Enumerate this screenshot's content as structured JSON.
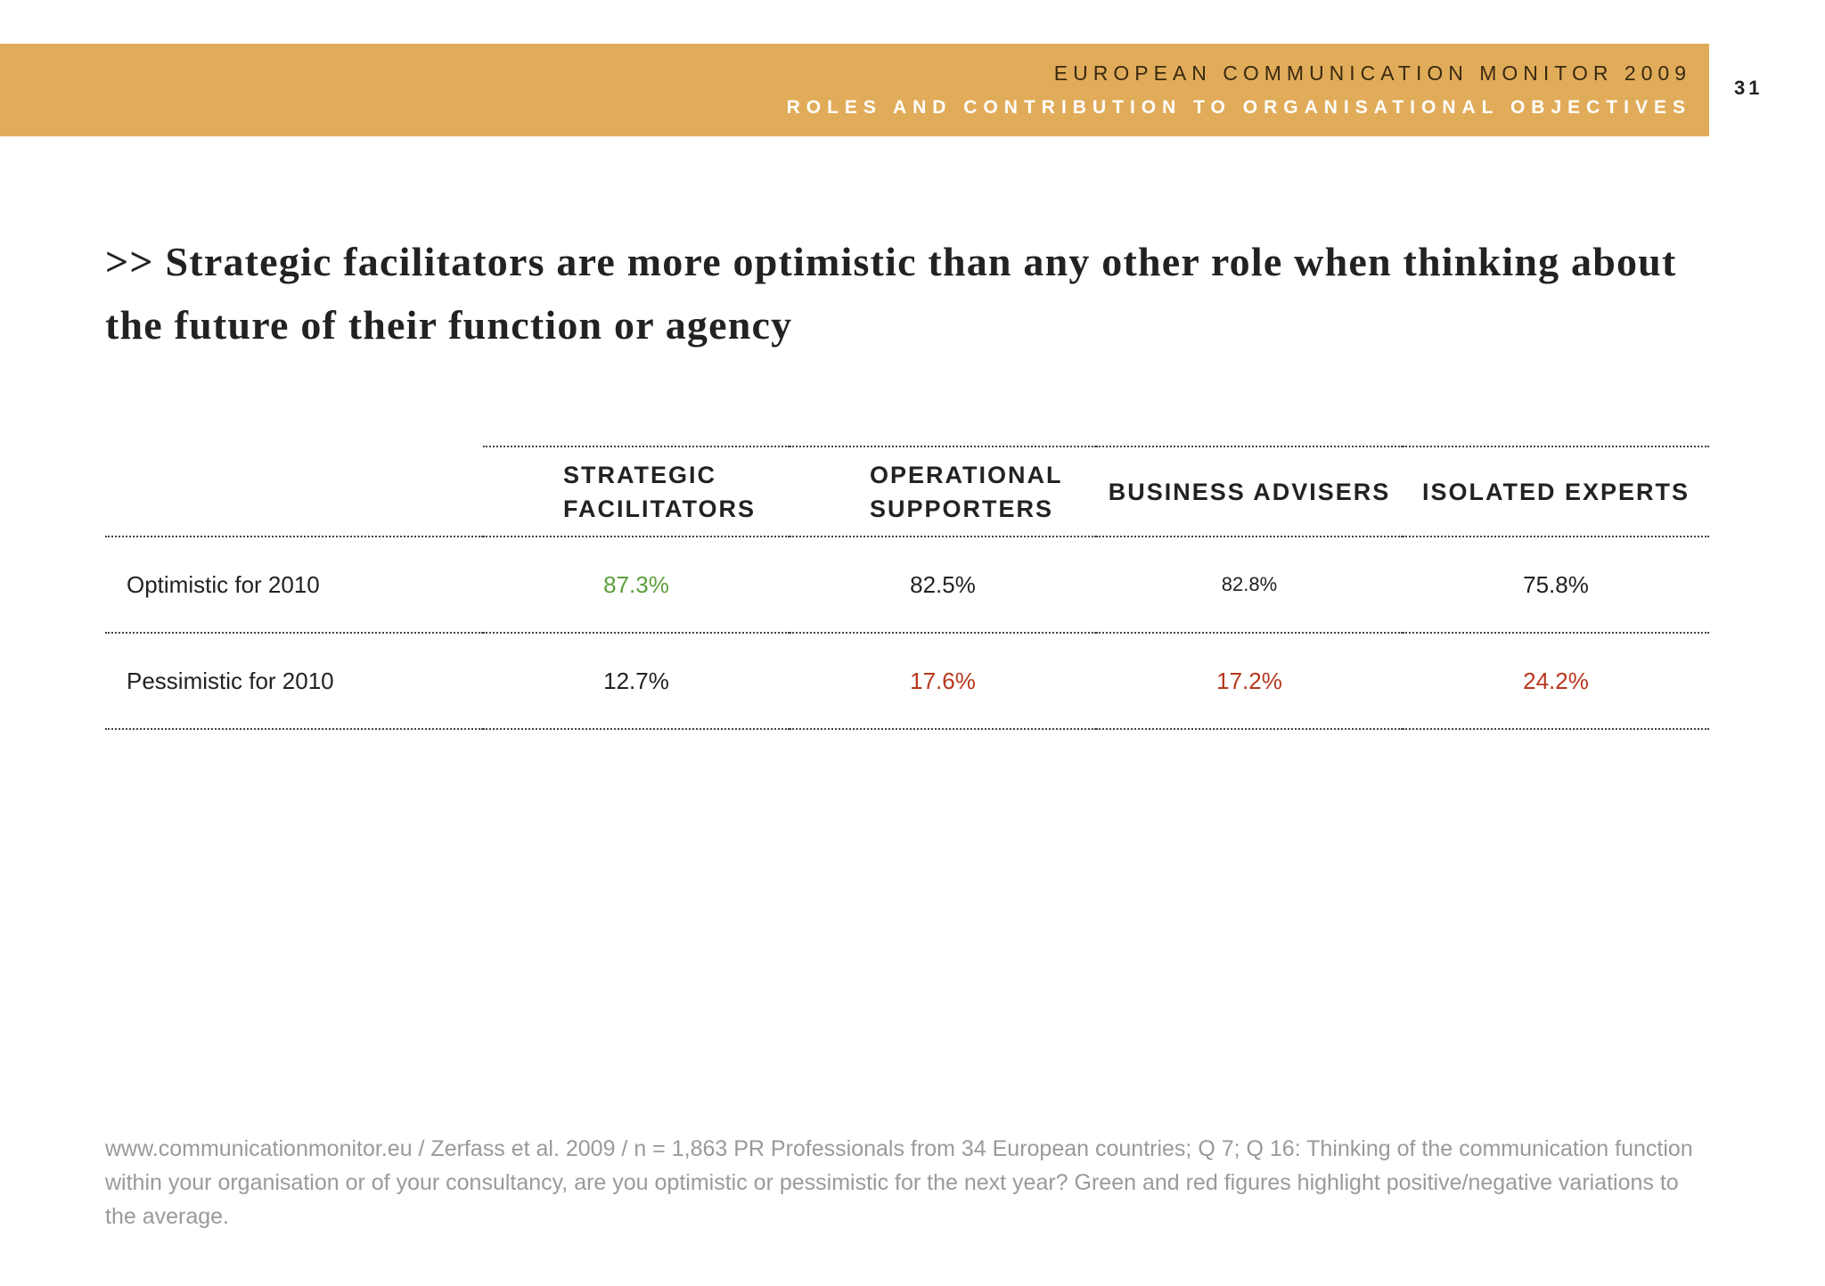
{
  "header": {
    "title": "EUROPEAN COMMUNICATION MONITOR 2009",
    "subtitle": "ROLES AND CONTRIBUTION TO ORGANISATIONAL OBJECTIVES",
    "band_color": "#e1ac5a",
    "page_number": "31"
  },
  "headline": ">> Strategic facilitators are more optimistic than any other role when thinking about the future of their function or agency",
  "table": {
    "columns": [
      "STRATEGIC FACILITATORS",
      "OPERATIONAL SUPPORTERS",
      "BUSINESS ADVISERS",
      "ISOLATED EXPERTS"
    ],
    "rows": [
      {
        "label": "Optimistic for 2010",
        "values": [
          "87.3%",
          "82.5%",
          "82.8%",
          "75.8%"
        ],
        "colors": [
          "#5c9e3a",
          "#222222",
          "#222222",
          "#222222"
        ]
      },
      {
        "label": "Pessimistic for 2010",
        "values": [
          "12.7%",
          "17.6%",
          "17.2%",
          "24.2%"
        ],
        "colors": [
          "#222222",
          "#b8371c",
          "#b8371c",
          "#b8371c"
        ]
      }
    ]
  },
  "footnote": "www.communicationmonitor.eu / Zerfass et al. 2009 / n = 1,863 PR Professionals from 34 European countries; Q 7; Q 16: Thinking of the communication function within your organisation or of your consultancy, are you optimistic or pessimistic for the next year? Green and red figures highlight positive/negative variations to the average."
}
